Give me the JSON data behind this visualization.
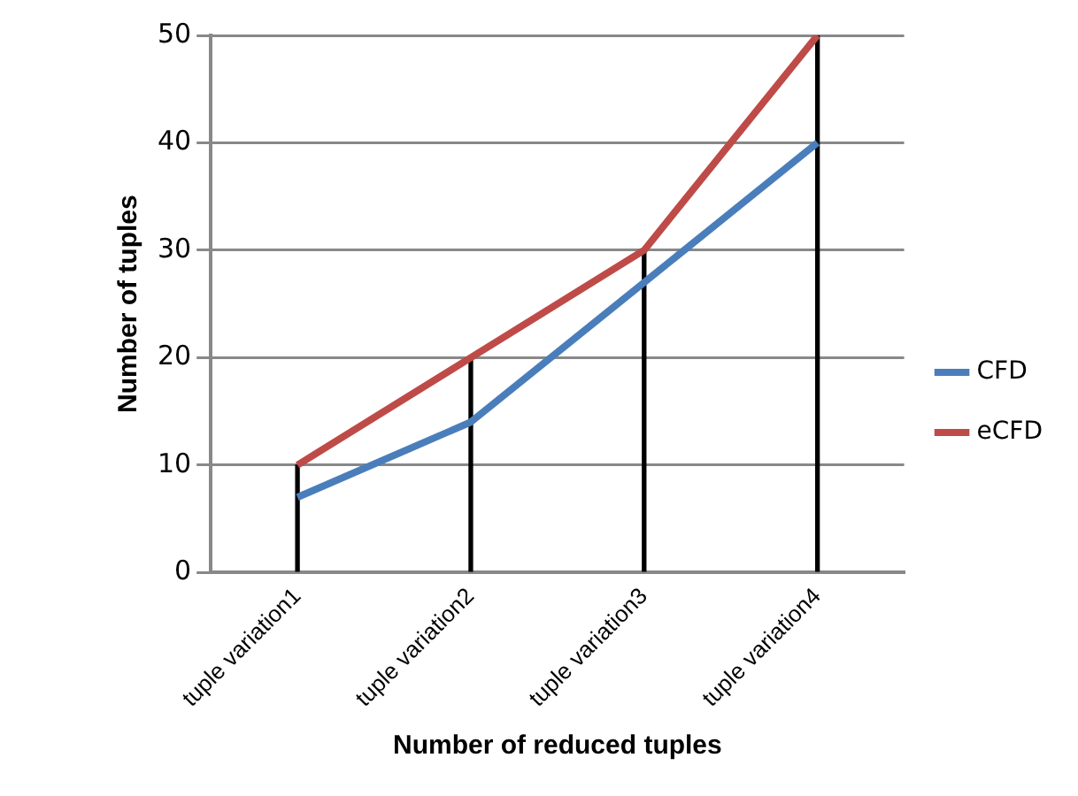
{
  "chart_data": {
    "type": "line",
    "xlabel": "Number of reduced tuples",
    "ylabel": "Number of tuples",
    "categories": [
      "tuple variation1",
      "tuple variation2",
      "tuple variation3",
      "tuple variation4"
    ],
    "series": [
      {
        "name": "CFD",
        "color": "#4a7ebb",
        "values": [
          7,
          14,
          27,
          40
        ]
      },
      {
        "name": "eCFD",
        "color": "#be4b48",
        "values": [
          10,
          20,
          30,
          50
        ]
      },
      {
        "type": "bar",
        "color": "#000000",
        "values": [
          10,
          20,
          30,
          50
        ]
      }
    ],
    "ylim": [
      0,
      50
    ],
    "yticks": [
      0,
      10,
      20,
      30,
      40,
      50
    ],
    "grid": "y",
    "legend": "right",
    "marker": "none",
    "line_style": "solid"
  }
}
